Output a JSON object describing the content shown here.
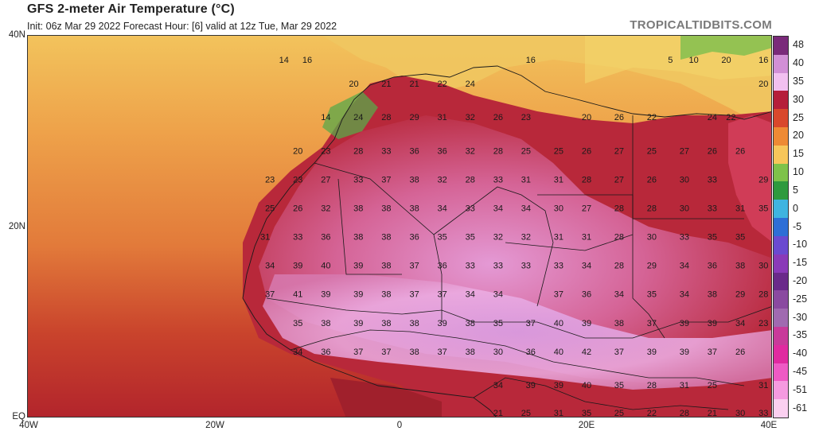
{
  "header": {
    "title": "GFS 2-meter Air Temperature (°C)",
    "subtitle": "Init: 06z Mar 29 2022   Forecast Hour: [6]   valid at 12z Tue, Mar 29 2022",
    "brand": "TROPICALTIDBITS.COM"
  },
  "axes": {
    "lat_labels": [
      "40N",
      "20N",
      "EQ"
    ],
    "lon_labels": [
      "40W",
      "20W",
      "0",
      "20E",
      "40E"
    ]
  },
  "colorbar": {
    "labels": [
      "48",
      "40",
      "35",
      "30",
      "25",
      "20",
      "15",
      "10",
      "5",
      "0",
      "-5",
      "-10",
      "-15",
      "-20",
      "-25",
      "-30",
      "-35",
      "-40",
      "-45",
      "-51",
      "-61"
    ],
    "colors": [
      "#7a2a7a",
      "#d28fd6",
      "#f2c0f0",
      "#b51e3a",
      "#d9482c",
      "#ee8a34",
      "#f7c65a",
      "#7ec24a",
      "#2e9a3e",
      "#3fb4e0",
      "#2d6ed6",
      "#6a4ad0",
      "#8a3ab8",
      "#6a2a8a",
      "#8a4aa0",
      "#a06ab0",
      "#c83a9a",
      "#e02aa0",
      "#ee5ac4",
      "#f59ae0",
      "#fbd0f0"
    ]
  },
  "map_values": [
    {
      "lat": 37.5,
      "lon": -12.5,
      "v": "14"
    },
    {
      "lat": 37.5,
      "lon": -10,
      "v": "16"
    },
    {
      "lat": 37.5,
      "lon": 14,
      "v": "16"
    },
    {
      "lat": 37.5,
      "lon": 29,
      "v": "5"
    },
    {
      "lat": 37.5,
      "lon": 31.5,
      "v": "10"
    },
    {
      "lat": 37.5,
      "lon": 35,
      "v": "20"
    },
    {
      "lat": 37.5,
      "lon": 39,
      "v": "16"
    },
    {
      "lat": 35,
      "lon": -5,
      "v": "20"
    },
    {
      "lat": 35,
      "lon": -1.5,
      "v": "21"
    },
    {
      "lat": 35,
      "lon": 1.5,
      "v": "21"
    },
    {
      "lat": 35,
      "lon": 4.5,
      "v": "22"
    },
    {
      "lat": 35,
      "lon": 7.5,
      "v": "24"
    },
    {
      "lat": 35,
      "lon": 39,
      "v": "20"
    },
    {
      "lat": 31.5,
      "lon": -8,
      "v": "14"
    },
    {
      "lat": 31.5,
      "lon": -4.5,
      "v": "24"
    },
    {
      "lat": 31.5,
      "lon": -1.5,
      "v": "28"
    },
    {
      "lat": 31.5,
      "lon": 1.5,
      "v": "29"
    },
    {
      "lat": 31.5,
      "lon": 4.5,
      "v": "31"
    },
    {
      "lat": 31.5,
      "lon": 7.5,
      "v": "32"
    },
    {
      "lat": 31.5,
      "lon": 10.5,
      "v": "26"
    },
    {
      "lat": 31.5,
      "lon": 13.5,
      "v": "23"
    },
    {
      "lat": 31.5,
      "lon": 20,
      "v": "20"
    },
    {
      "lat": 31.5,
      "lon": 23.5,
      "v": "26"
    },
    {
      "lat": 31.5,
      "lon": 27,
      "v": "22"
    },
    {
      "lat": 31.5,
      "lon": 33.5,
      "v": "24"
    },
    {
      "lat": 31.5,
      "lon": 35.5,
      "v": "22"
    },
    {
      "lat": 28,
      "lon": -11,
      "v": "20"
    },
    {
      "lat": 28,
      "lon": -8,
      "v": "23"
    },
    {
      "lat": 28,
      "lon": -4.5,
      "v": "28"
    },
    {
      "lat": 28,
      "lon": -1.5,
      "v": "33"
    },
    {
      "lat": 28,
      "lon": 1.5,
      "v": "36"
    },
    {
      "lat": 28,
      "lon": 4.5,
      "v": "36"
    },
    {
      "lat": 28,
      "lon": 7.5,
      "v": "32"
    },
    {
      "lat": 28,
      "lon": 10.5,
      "v": "28"
    },
    {
      "lat": 28,
      "lon": 13.5,
      "v": "25"
    },
    {
      "lat": 28,
      "lon": 17,
      "v": "25"
    },
    {
      "lat": 28,
      "lon": 20,
      "v": "26"
    },
    {
      "lat": 28,
      "lon": 23.5,
      "v": "27"
    },
    {
      "lat": 28,
      "lon": 27,
      "v": "25"
    },
    {
      "lat": 28,
      "lon": 30.5,
      "v": "27"
    },
    {
      "lat": 28,
      "lon": 33.5,
      "v": "26"
    },
    {
      "lat": 28,
      "lon": 36.5,
      "v": "26"
    },
    {
      "lat": 25,
      "lon": -14,
      "v": "23"
    },
    {
      "lat": 25,
      "lon": -11,
      "v": "23"
    },
    {
      "lat": 25,
      "lon": -8,
      "v": "27"
    },
    {
      "lat": 25,
      "lon": -4.5,
      "v": "33"
    },
    {
      "lat": 25,
      "lon": -1.5,
      "v": "37"
    },
    {
      "lat": 25,
      "lon": 1.5,
      "v": "38"
    },
    {
      "lat": 25,
      "lon": 4.5,
      "v": "32"
    },
    {
      "lat": 25,
      "lon": 7.5,
      "v": "28"
    },
    {
      "lat": 25,
      "lon": 10.5,
      "v": "33"
    },
    {
      "lat": 25,
      "lon": 13.5,
      "v": "31"
    },
    {
      "lat": 25,
      "lon": 17,
      "v": "31"
    },
    {
      "lat": 25,
      "lon": 20,
      "v": "28"
    },
    {
      "lat": 25,
      "lon": 23.5,
      "v": "27"
    },
    {
      "lat": 25,
      "lon": 27,
      "v": "26"
    },
    {
      "lat": 25,
      "lon": 30.5,
      "v": "30"
    },
    {
      "lat": 25,
      "lon": 33.5,
      "v": "33"
    },
    {
      "lat": 25,
      "lon": 39,
      "v": "29"
    },
    {
      "lat": 22,
      "lon": -14,
      "v": "25"
    },
    {
      "lat": 22,
      "lon": -11,
      "v": "26"
    },
    {
      "lat": 22,
      "lon": -8,
      "v": "32"
    },
    {
      "lat": 22,
      "lon": -4.5,
      "v": "38"
    },
    {
      "lat": 22,
      "lon": -1.5,
      "v": "38"
    },
    {
      "lat": 22,
      "lon": 1.5,
      "v": "38"
    },
    {
      "lat": 22,
      "lon": 4.5,
      "v": "34"
    },
    {
      "lat": 22,
      "lon": 7.5,
      "v": "33"
    },
    {
      "lat": 22,
      "lon": 10.5,
      "v": "34"
    },
    {
      "lat": 22,
      "lon": 13.5,
      "v": "34"
    },
    {
      "lat": 22,
      "lon": 17,
      "v": "30"
    },
    {
      "lat": 22,
      "lon": 20,
      "v": "27"
    },
    {
      "lat": 22,
      "lon": 23.5,
      "v": "28"
    },
    {
      "lat": 22,
      "lon": 27,
      "v": "28"
    },
    {
      "lat": 22,
      "lon": 30.5,
      "v": "30"
    },
    {
      "lat": 22,
      "lon": 33.5,
      "v": "33"
    },
    {
      "lat": 22,
      "lon": 36.5,
      "v": "31"
    },
    {
      "lat": 22,
      "lon": 39,
      "v": "35"
    },
    {
      "lat": 19,
      "lon": -14.5,
      "v": "31"
    },
    {
      "lat": 19,
      "lon": -11,
      "v": "33"
    },
    {
      "lat": 19,
      "lon": -8,
      "v": "36"
    },
    {
      "lat": 19,
      "lon": -4.5,
      "v": "38"
    },
    {
      "lat": 19,
      "lon": -1.5,
      "v": "38"
    },
    {
      "lat": 19,
      "lon": 1.5,
      "v": "36"
    },
    {
      "lat": 19,
      "lon": 4.5,
      "v": "35"
    },
    {
      "lat": 19,
      "lon": 7.5,
      "v": "35"
    },
    {
      "lat": 19,
      "lon": 10.5,
      "v": "32"
    },
    {
      "lat": 19,
      "lon": 13.5,
      "v": "32"
    },
    {
      "lat": 19,
      "lon": 17,
      "v": "31"
    },
    {
      "lat": 19,
      "lon": 20,
      "v": "31"
    },
    {
      "lat": 19,
      "lon": 23.5,
      "v": "28"
    },
    {
      "lat": 19,
      "lon": 27,
      "v": "30"
    },
    {
      "lat": 19,
      "lon": 30.5,
      "v": "33"
    },
    {
      "lat": 19,
      "lon": 33.5,
      "v": "35"
    },
    {
      "lat": 19,
      "lon": 36.5,
      "v": "35"
    },
    {
      "lat": 16,
      "lon": -14,
      "v": "34"
    },
    {
      "lat": 16,
      "lon": -11,
      "v": "39"
    },
    {
      "lat": 16,
      "lon": -8,
      "v": "40"
    },
    {
      "lat": 16,
      "lon": -4.5,
      "v": "39"
    },
    {
      "lat": 16,
      "lon": -1.5,
      "v": "38"
    },
    {
      "lat": 16,
      "lon": 1.5,
      "v": "37"
    },
    {
      "lat": 16,
      "lon": 4.5,
      "v": "36"
    },
    {
      "lat": 16,
      "lon": 7.5,
      "v": "33"
    },
    {
      "lat": 16,
      "lon": 10.5,
      "v": "33"
    },
    {
      "lat": 16,
      "lon": 13.5,
      "v": "33"
    },
    {
      "lat": 16,
      "lon": 17,
      "v": "33"
    },
    {
      "lat": 16,
      "lon": 20,
      "v": "34"
    },
    {
      "lat": 16,
      "lon": 23.5,
      "v": "28"
    },
    {
      "lat": 16,
      "lon": 27,
      "v": "29"
    },
    {
      "lat": 16,
      "lon": 30.5,
      "v": "34"
    },
    {
      "lat": 16,
      "lon": 33.5,
      "v": "36"
    },
    {
      "lat": 16,
      "lon": 36.5,
      "v": "38"
    },
    {
      "lat": 16,
      "lon": 39,
      "v": "30"
    },
    {
      "lat": 13,
      "lon": -14,
      "v": "37"
    },
    {
      "lat": 13,
      "lon": -11,
      "v": "41"
    },
    {
      "lat": 13,
      "lon": -8,
      "v": "39"
    },
    {
      "lat": 13,
      "lon": -4.5,
      "v": "39"
    },
    {
      "lat": 13,
      "lon": -1.5,
      "v": "38"
    },
    {
      "lat": 13,
      "lon": 1.5,
      "v": "37"
    },
    {
      "lat": 13,
      "lon": 4.5,
      "v": "37"
    },
    {
      "lat": 13,
      "lon": 7.5,
      "v": "34"
    },
    {
      "lat": 13,
      "lon": 10.5,
      "v": "34"
    },
    {
      "lat": 13,
      "lon": 17,
      "v": "37"
    },
    {
      "lat": 13,
      "lon": 20,
      "v": "36"
    },
    {
      "lat": 13,
      "lon": 23.5,
      "v": "34"
    },
    {
      "lat": 13,
      "lon": 27,
      "v": "35"
    },
    {
      "lat": 13,
      "lon": 30.5,
      "v": "34"
    },
    {
      "lat": 13,
      "lon": 33.5,
      "v": "38"
    },
    {
      "lat": 13,
      "lon": 36.5,
      "v": "29"
    },
    {
      "lat": 13,
      "lon": 39,
      "v": "28"
    },
    {
      "lat": 10,
      "lon": -11,
      "v": "35"
    },
    {
      "lat": 10,
      "lon": -8,
      "v": "38"
    },
    {
      "lat": 10,
      "lon": -4.5,
      "v": "39"
    },
    {
      "lat": 10,
      "lon": -1.5,
      "v": "38"
    },
    {
      "lat": 10,
      "lon": 1.5,
      "v": "38"
    },
    {
      "lat": 10,
      "lon": 4.5,
      "v": "39"
    },
    {
      "lat": 10,
      "lon": 7.5,
      "v": "38"
    },
    {
      "lat": 10,
      "lon": 10.5,
      "v": "35"
    },
    {
      "lat": 10,
      "lon": 14,
      "v": "37"
    },
    {
      "lat": 10,
      "lon": 17,
      "v": "40"
    },
    {
      "lat": 10,
      "lon": 20,
      "v": "39"
    },
    {
      "lat": 10,
      "lon": 23.5,
      "v": "38"
    },
    {
      "lat": 10,
      "lon": 27,
      "v": "37"
    },
    {
      "lat": 10,
      "lon": 30.5,
      "v": "39"
    },
    {
      "lat": 10,
      "lon": 33.5,
      "v": "39"
    },
    {
      "lat": 10,
      "lon": 36.5,
      "v": "34"
    },
    {
      "lat": 10,
      "lon": 39,
      "v": "23"
    },
    {
      "lat": 7,
      "lon": -11,
      "v": "34"
    },
    {
      "lat": 7,
      "lon": -8,
      "v": "36"
    },
    {
      "lat": 7,
      "lon": -4.5,
      "v": "37"
    },
    {
      "lat": 7,
      "lon": -1.5,
      "v": "37"
    },
    {
      "lat": 7,
      "lon": 1.5,
      "v": "38"
    },
    {
      "lat": 7,
      "lon": 4.5,
      "v": "37"
    },
    {
      "lat": 7,
      "lon": 7.5,
      "v": "38"
    },
    {
      "lat": 7,
      "lon": 10.5,
      "v": "30"
    },
    {
      "lat": 7,
      "lon": 14,
      "v": "36"
    },
    {
      "lat": 7,
      "lon": 17,
      "v": "40"
    },
    {
      "lat": 7,
      "lon": 20,
      "v": "42"
    },
    {
      "lat": 7,
      "lon": 23.5,
      "v": "37"
    },
    {
      "lat": 7,
      "lon": 27,
      "v": "39"
    },
    {
      "lat": 7,
      "lon": 30.5,
      "v": "39"
    },
    {
      "lat": 7,
      "lon": 33.5,
      "v": "37"
    },
    {
      "lat": 7,
      "lon": 36.5,
      "v": "26"
    },
    {
      "lat": 3.5,
      "lon": 10.5,
      "v": "34"
    },
    {
      "lat": 3.5,
      "lon": 14,
      "v": "39"
    },
    {
      "lat": 3.5,
      "lon": 17,
      "v": "39"
    },
    {
      "lat": 3.5,
      "lon": 20,
      "v": "40"
    },
    {
      "lat": 3.5,
      "lon": 23.5,
      "v": "35"
    },
    {
      "lat": 3.5,
      "lon": 27,
      "v": "28"
    },
    {
      "lat": 3.5,
      "lon": 30.5,
      "v": "31"
    },
    {
      "lat": 3.5,
      "lon": 33.5,
      "v": "25"
    },
    {
      "lat": 3.5,
      "lon": 39,
      "v": "31"
    },
    {
      "lat": 0.6,
      "lon": 10.5,
      "v": "21"
    },
    {
      "lat": 0.6,
      "lon": 13.5,
      "v": "25"
    },
    {
      "lat": 0.6,
      "lon": 17,
      "v": "31"
    },
    {
      "lat": 0.6,
      "lon": 20,
      "v": "35"
    },
    {
      "lat": 0.6,
      "lon": 23.5,
      "v": "25"
    },
    {
      "lat": 0.6,
      "lon": 27,
      "v": "22"
    },
    {
      "lat": 0.6,
      "lon": 30.5,
      "v": "28"
    },
    {
      "lat": 0.6,
      "lon": 33.5,
      "v": "21"
    },
    {
      "lat": 0.6,
      "lon": 36.5,
      "v": "30"
    },
    {
      "lat": 0.6,
      "lon": 39,
      "v": "33"
    }
  ]
}
